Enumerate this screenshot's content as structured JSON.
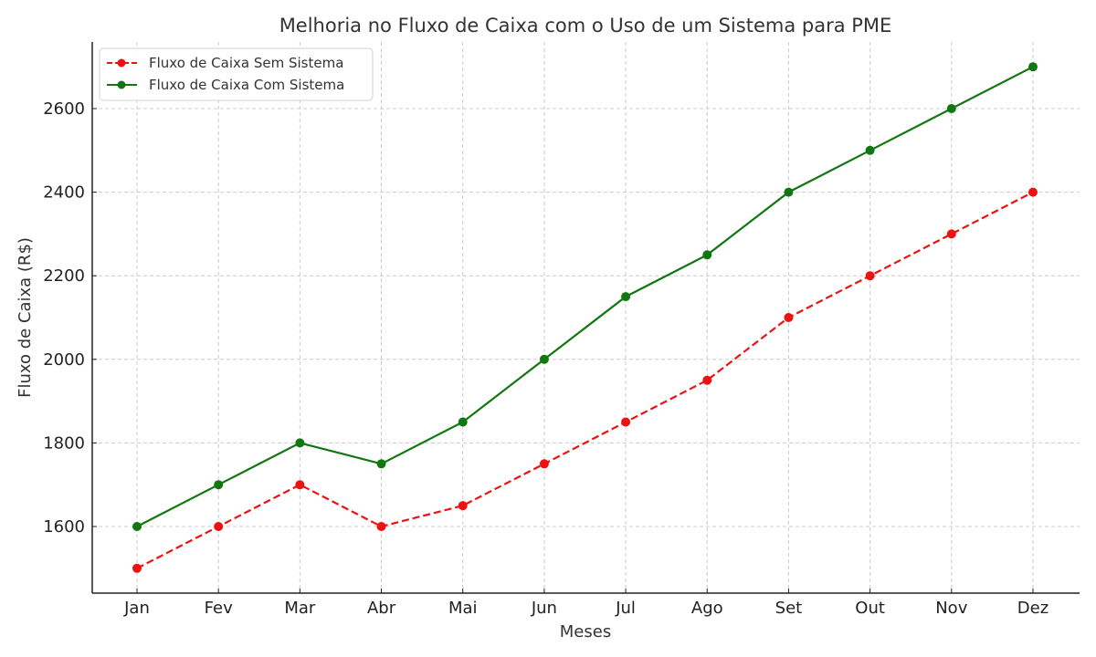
{
  "chart_data": {
    "type": "line",
    "title": "Melhoria no Fluxo de Caixa com o Uso de um Sistema para PME",
    "xlabel": "Meses",
    "ylabel": "Fluxo de Caixa (R$)",
    "categories": [
      "Jan",
      "Fev",
      "Mar",
      "Abr",
      "Mai",
      "Jun",
      "Jul",
      "Ago",
      "Set",
      "Out",
      "Nov",
      "Dez"
    ],
    "series": [
      {
        "name": "Fluxo de Caixa Sem Sistema",
        "color": "#ee1111",
        "style": "dashed",
        "marker": "circle",
        "values": [
          1500,
          1600,
          1700,
          1600,
          1650,
          1750,
          1850,
          1950,
          2100,
          2200,
          2300,
          2400
        ]
      },
      {
        "name": "Fluxo de Caixa Com Sistema",
        "color": "#117711",
        "style": "solid",
        "marker": "circle",
        "values": [
          1600,
          1700,
          1800,
          1750,
          1850,
          2000,
          2150,
          2250,
          2400,
          2500,
          2600,
          2700
        ]
      }
    ],
    "yticks": [
      1600,
      1800,
      2000,
      2200,
      2400,
      2600
    ],
    "ylim": [
      1440,
      2760
    ],
    "grid": true,
    "legend_position": "upper left"
  }
}
